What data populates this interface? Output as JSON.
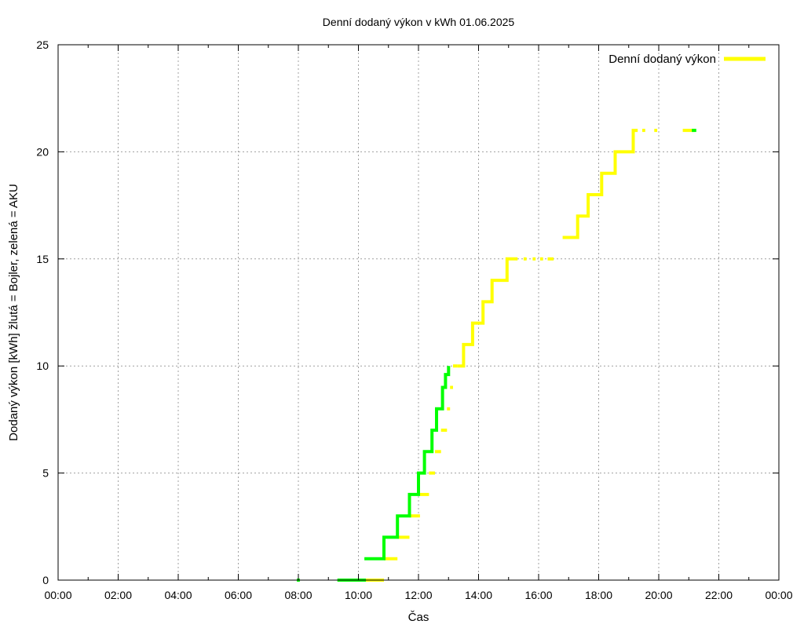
{
  "chart_data": {
    "type": "line",
    "title": "Denní dodaný výkon v kWh 01.06.2025",
    "xlabel": "Čas",
    "ylabel": "Dodaný výkon [kWh]  žlutá = Bojler, zelená = AKU",
    "xlim": [
      0,
      24
    ],
    "ylim": [
      0,
      25
    ],
    "grid": true,
    "legend_position": "top-right",
    "x_ticks": [
      {
        "value": 0,
        "label": "00:00"
      },
      {
        "value": 2,
        "label": "02:00"
      },
      {
        "value": 4,
        "label": "04:00"
      },
      {
        "value": 6,
        "label": "06:00"
      },
      {
        "value": 8,
        "label": "08:00"
      },
      {
        "value": 10,
        "label": "10:00"
      },
      {
        "value": 12,
        "label": "12:00"
      },
      {
        "value": 14,
        "label": "14:00"
      },
      {
        "value": 16,
        "label": "16:00"
      },
      {
        "value": 18,
        "label": "18:00"
      },
      {
        "value": 20,
        "label": "20:00"
      },
      {
        "value": 22,
        "label": "22:00"
      },
      {
        "value": 24,
        "label": "00:00"
      }
    ],
    "y_ticks": [
      {
        "value": 0,
        "label": "0"
      },
      {
        "value": 5,
        "label": "5"
      },
      {
        "value": 10,
        "label": "10"
      },
      {
        "value": 15,
        "label": "15"
      },
      {
        "value": 20,
        "label": "20"
      },
      {
        "value": 25,
        "label": "25"
      }
    ],
    "series": [
      {
        "name": "Denní dodaný výkon",
        "color": "#ffff00",
        "segments": [
          [
            [
              10.0,
              0
            ],
            [
              10.85,
              0
            ]
          ],
          [
            [
              10.85,
              1
            ],
            [
              11.3,
              1
            ]
          ],
          [
            [
              11.3,
              2
            ],
            [
              11.7,
              2
            ]
          ],
          [
            [
              11.7,
              3
            ],
            [
              12.05,
              3
            ]
          ],
          [
            [
              12.05,
              4
            ],
            [
              12.35,
              4
            ]
          ],
          [
            [
              12.35,
              5
            ],
            [
              12.55,
              5
            ]
          ],
          [
            [
              12.55,
              6
            ],
            [
              12.75,
              6
            ]
          ],
          [
            [
              12.75,
              7
            ],
            [
              12.95,
              7
            ]
          ],
          [
            [
              12.95,
              8
            ],
            [
              13.05,
              8
            ]
          ],
          [
            [
              13.05,
              9
            ],
            [
              13.15,
              9
            ]
          ],
          [
            [
              13.15,
              10
            ],
            [
              13.3,
              10
            ]
          ],
          [
            [
              13.3,
              10
            ],
            [
              13.5,
              10
            ],
            [
              13.5,
              11
            ],
            [
              13.8,
              11
            ],
            [
              13.8,
              12
            ],
            [
              14.15,
              12
            ],
            [
              14.15,
              13
            ],
            [
              14.45,
              13
            ],
            [
              14.45,
              14
            ],
            [
              14.95,
              14
            ],
            [
              14.95,
              15
            ],
            [
              15.3,
              15
            ]
          ],
          [
            [
              15.5,
              15
            ],
            [
              15.6,
              15
            ]
          ],
          [
            [
              15.8,
              15
            ],
            [
              15.9,
              15
            ]
          ],
          [
            [
              16.05,
              15
            ],
            [
              16.15,
              15
            ]
          ],
          [
            [
              16.3,
              15
            ],
            [
              16.5,
              15
            ]
          ],
          [
            [
              16.8,
              16
            ],
            [
              17.3,
              16
            ],
            [
              17.3,
              17
            ],
            [
              17.65,
              17
            ],
            [
              17.65,
              18
            ],
            [
              18.1,
              18
            ],
            [
              18.1,
              19
            ],
            [
              18.55,
              19
            ],
            [
              18.55,
              20
            ],
            [
              19.15,
              20
            ],
            [
              19.15,
              21
            ],
            [
              19.3,
              21
            ]
          ],
          [
            [
              19.45,
              21
            ],
            [
              19.55,
              21
            ]
          ],
          [
            [
              19.85,
              21
            ],
            [
              19.95,
              21
            ]
          ],
          [
            [
              20.8,
              21
            ],
            [
              21.2,
              21
            ]
          ]
        ]
      },
      {
        "name": "",
        "color": "#00ff00",
        "segments": [
          [
            [
              7.95,
              0
            ],
            [
              8.05,
              0
            ]
          ],
          [
            [
              9.3,
              0
            ],
            [
              10.25,
              0
            ]
          ],
          [
            [
              10.2,
              1
            ],
            [
              10.85,
              1
            ],
            [
              10.85,
              2
            ],
            [
              11.3,
              2
            ],
            [
              11.3,
              3
            ],
            [
              11.7,
              3
            ],
            [
              11.7,
              4
            ],
            [
              12.0,
              4
            ],
            [
              12.0,
              5
            ],
            [
              12.2,
              5
            ],
            [
              12.2,
              6
            ],
            [
              12.45,
              6
            ],
            [
              12.45,
              7
            ],
            [
              12.6,
              7
            ],
            [
              12.6,
              8
            ],
            [
              12.8,
              8
            ],
            [
              12.8,
              9
            ],
            [
              12.9,
              9
            ],
            [
              12.9,
              9.6
            ],
            [
              13.0,
              9.6
            ],
            [
              13.0,
              10
            ]
          ],
          [
            [
              21.1,
              21
            ],
            [
              21.25,
              21
            ]
          ]
        ]
      }
    ]
  }
}
